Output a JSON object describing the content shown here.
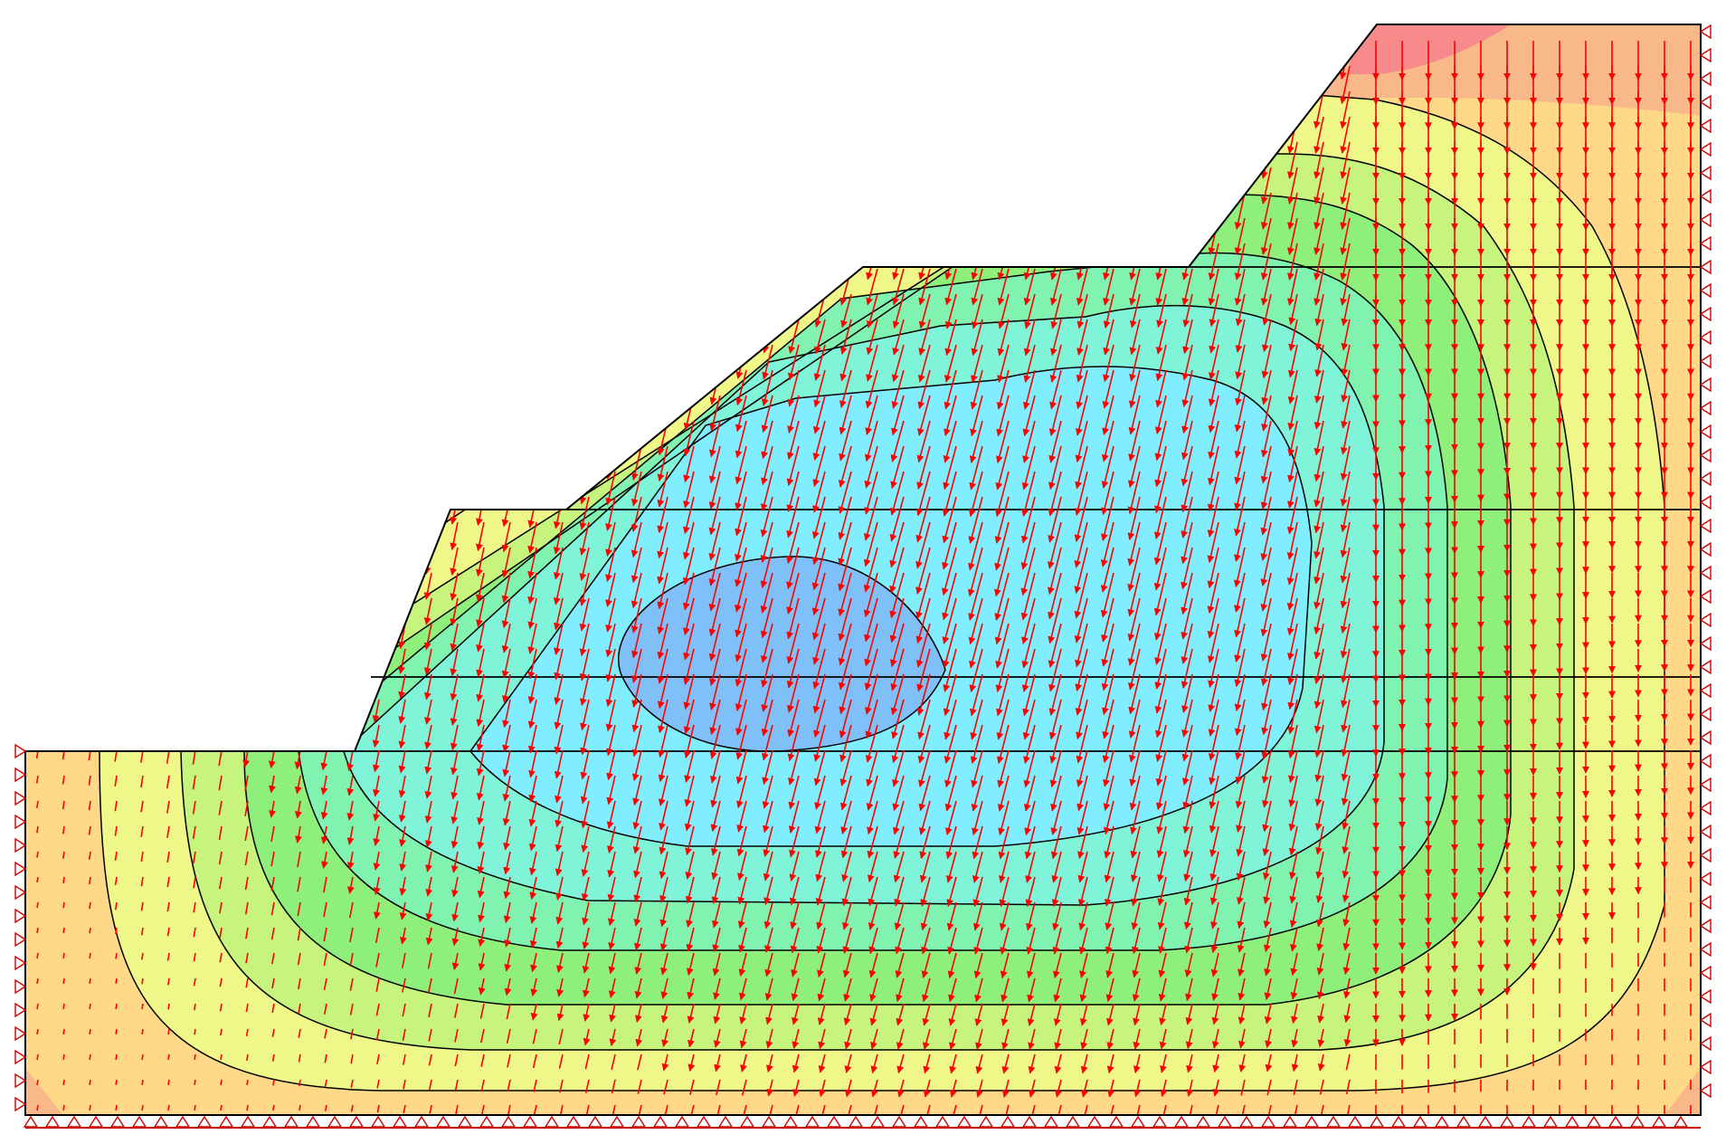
{
  "diagram": {
    "type": "slope-stability-fem-result",
    "colors": {
      "background": "#ffffff",
      "outline": "#000000",
      "vector": "#ff0000",
      "support": "#cc0000"
    },
    "contour_bands": [
      {
        "level": 0,
        "color": "#ffd888"
      },
      {
        "level": 1,
        "color": "#eef787"
      },
      {
        "level": 2,
        "color": "#c6f47d"
      },
      {
        "level": 3,
        "color": "#8ef07a"
      },
      {
        "level": 4,
        "color": "#80f3b0"
      },
      {
        "level": 5,
        "color": "#80f4d8"
      },
      {
        "level": 6,
        "color": "#80eeff"
      },
      {
        "level": 7,
        "color": "#80c0f8"
      }
    ],
    "hot_spots": [
      {
        "name": "top-right-peak",
        "color": "#f78a8a"
      },
      {
        "name": "top-band",
        "color": "#f8b88a"
      },
      {
        "name": "corner",
        "color": "#f8b88a"
      }
    ],
    "icons": {
      "vector": "arrow-icon",
      "support": "roller-support-icon"
    }
  }
}
